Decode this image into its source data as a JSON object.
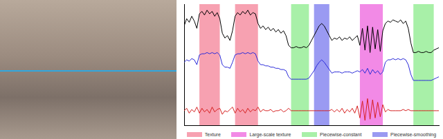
{
  "chart_data": {
    "type": "line",
    "tick_labels": false,
    "grid": false,
    "xlim": [
      0,
      100
    ],
    "ylim": [
      0,
      100
    ],
    "x": [
      0,
      1,
      2,
      3,
      4,
      5,
      6,
      7,
      8,
      9,
      10,
      11,
      12,
      13,
      14,
      15,
      16,
      17,
      18,
      19,
      20,
      21,
      22,
      23,
      24,
      25,
      26,
      27,
      28,
      29,
      30,
      31,
      32,
      33,
      34,
      35,
      36,
      37,
      38,
      39,
      40,
      41,
      42,
      43,
      44,
      45,
      46,
      47,
      48,
      49,
      50,
      51,
      52,
      53,
      54,
      55,
      56,
      57,
      58,
      59,
      60,
      61,
      62,
      63,
      64,
      65,
      66,
      67,
      68,
      69,
      70,
      71,
      72,
      73,
      74,
      75,
      76,
      77,
      78,
      79,
      80,
      81,
      82,
      83,
      84,
      85,
      86,
      87,
      88,
      89,
      90,
      91,
      92,
      93,
      94,
      95,
      96,
      97,
      98,
      99,
      100
    ],
    "series": [
      {
        "color": "#000000",
        "values": [
          82,
          88,
          85,
          90,
          86,
          80,
          92,
          94,
          91,
          95,
          92,
          94,
          90,
          93,
          88,
          76,
          72,
          74,
          70,
          78,
          90,
          93,
          91,
          94,
          92,
          95,
          91,
          93,
          92,
          84,
          80,
          82,
          79,
          81,
          78,
          80,
          77,
          79,
          76,
          78,
          74,
          66,
          64,
          64,
          65,
          64,
          64,
          65,
          64,
          66,
          70,
          74,
          78,
          82,
          84,
          82,
          78,
          74,
          70,
          72,
          71,
          73,
          70,
          72,
          71,
          73,
          70,
          72,
          74,
          66,
          80,
          62,
          82,
          60,
          81,
          63,
          79,
          61,
          78,
          84,
          86,
          85,
          87,
          86,
          85,
          87,
          84,
          86,
          80,
          68,
          60,
          60,
          61,
          60,
          60,
          61,
          60,
          60,
          62,
          63,
          64
        ]
      },
      {
        "color": "#2b2bd9",
        "values": [
          52,
          54,
          53,
          55,
          54,
          50,
          58,
          59,
          59,
          60,
          59,
          60,
          59,
          60,
          58,
          50,
          48,
          48,
          47,
          52,
          58,
          59,
          59,
          60,
          59,
          60,
          59,
          60,
          59,
          53,
          50,
          50,
          49,
          49,
          48,
          48,
          47,
          47,
          46,
          46,
          45,
          40,
          38,
          38,
          38,
          38,
          38,
          38,
          38,
          39,
          42,
          45,
          49,
          52,
          54,
          52,
          49,
          46,
          43,
          44,
          44,
          44,
          43,
          44,
          44,
          44,
          43,
          44,
          45,
          44,
          46,
          43,
          47,
          42,
          46,
          43,
          45,
          42,
          44,
          52,
          54,
          54,
          55,
          54,
          55,
          54,
          55,
          54,
          50,
          42,
          37,
          37,
          37,
          37,
          37,
          37,
          37,
          37,
          38,
          39,
          40
        ]
      },
      {
        "color": "#d62020",
        "values": [
          12,
          14,
          10,
          13,
          11,
          15,
          10,
          14,
          11,
          13,
          10,
          15,
          11,
          13,
          14,
          9,
          12,
          11,
          13,
          15,
          10,
          14,
          11,
          13,
          10,
          14,
          11,
          13,
          12,
          15,
          11,
          13,
          12,
          12,
          13,
          11,
          12,
          12,
          13,
          11,
          12,
          14,
          12,
          12,
          12,
          12,
          12,
          12,
          12,
          12,
          12,
          12,
          12,
          12,
          12,
          12,
          12,
          12,
          13,
          11,
          13,
          11,
          14,
          10,
          13,
          11,
          14,
          10,
          16,
          6,
          20,
          4,
          22,
          5,
          21,
          6,
          19,
          7,
          17,
          11,
          13,
          12,
          12,
          12,
          12,
          12,
          13,
          12,
          13,
          12,
          12,
          12,
          12,
          12,
          12,
          12,
          12,
          12,
          12,
          12,
          12
        ]
      }
    ],
    "regions": [
      {
        "name": "Texture",
        "color": "#f7a1b1",
        "spans": [
          [
            6,
            14
          ],
          [
            20,
            29
          ]
        ]
      },
      {
        "name": "Large-scale texture",
        "color": "#f28ae6",
        "spans": [
          [
            69,
            78
          ]
        ]
      },
      {
        "name": "Piecewise-constant",
        "color": "#a8f0a8",
        "spans": [
          [
            42,
            49
          ],
          [
            90,
            98
          ]
        ]
      },
      {
        "name": "Piecewise-smoothing",
        "color": "#9a9af2",
        "spans": [
          [
            51,
            57
          ]
        ]
      }
    ]
  }
}
